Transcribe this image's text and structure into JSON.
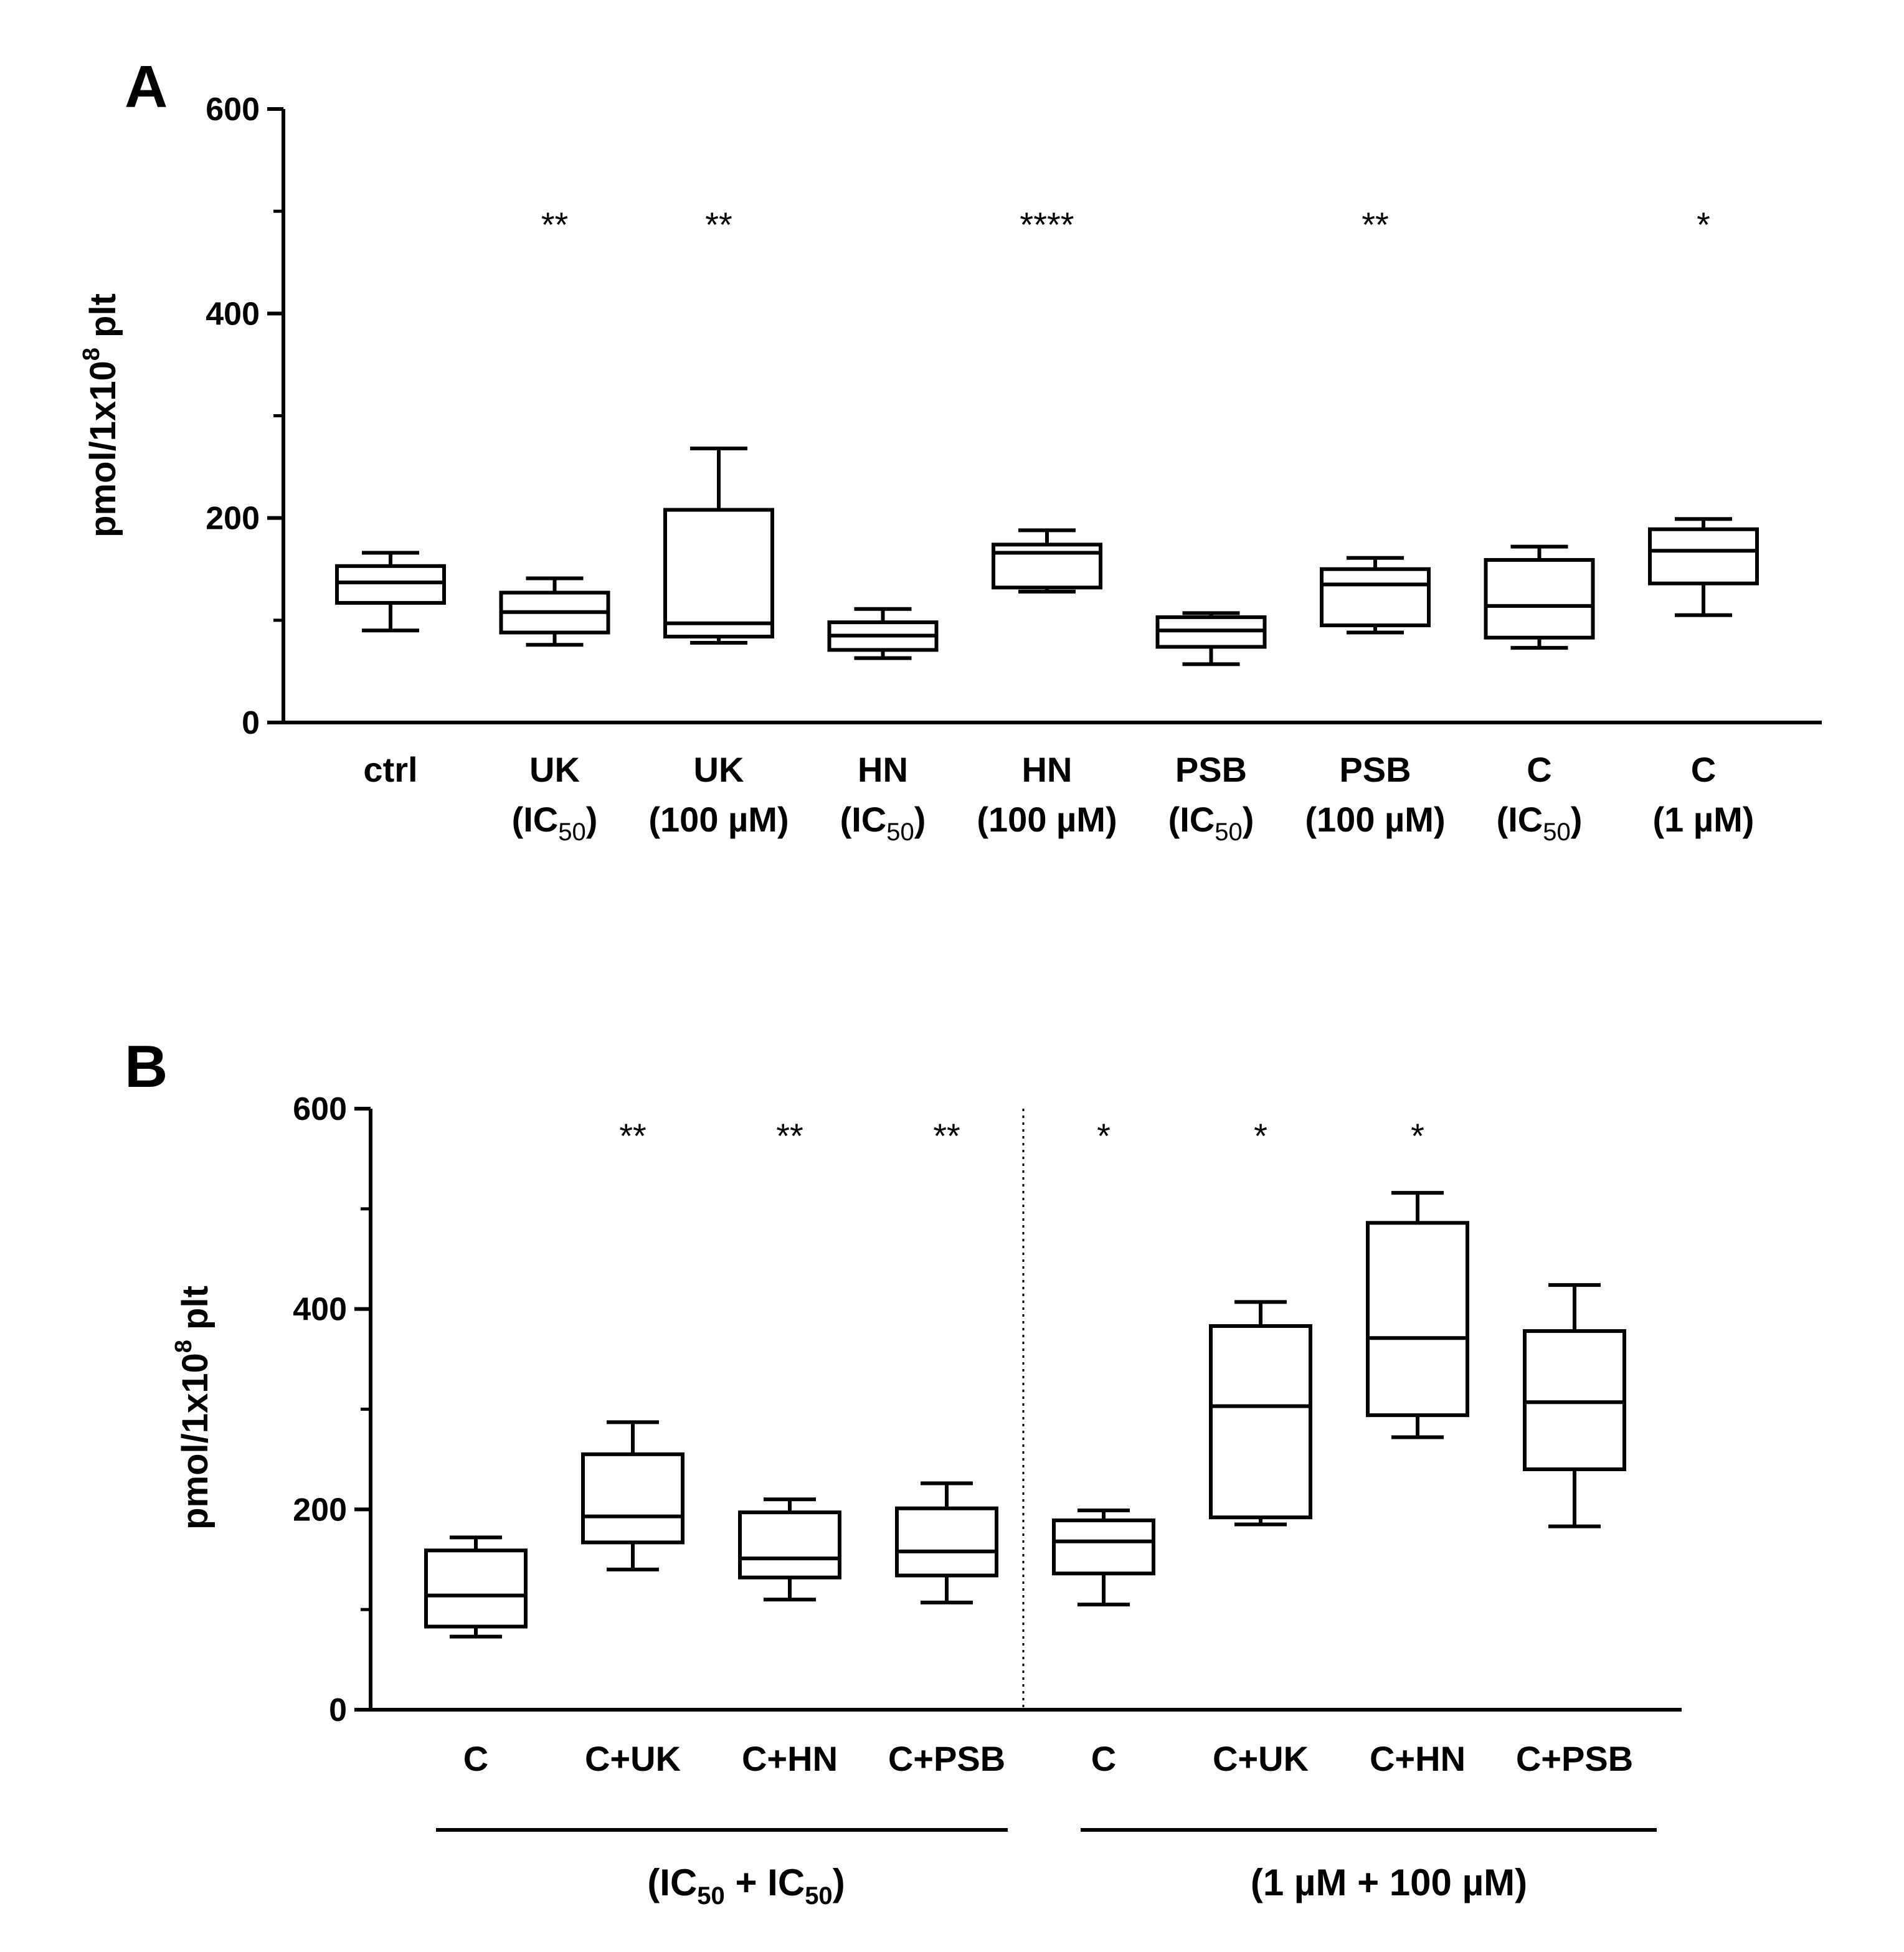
{
  "chart_data": [
    {
      "panel": "A",
      "type": "box",
      "ylabel": {
        "main": "pmol/1x10",
        "sup": "8",
        "tail": " plt"
      },
      "ylim": [
        0,
        600
      ],
      "yticks": [
        "0",
        "200",
        "400",
        "600"
      ],
      "categories": [
        {
          "line1": "ctrl",
          "line2": null
        },
        {
          "line1": "UK",
          "line2": {
            "pre": "(IC",
            "sub": "50",
            "post": ")"
          }
        },
        {
          "line1": "UK",
          "line2": {
            "pre": "(100 µM)",
            "sub": "",
            "post": ""
          }
        },
        {
          "line1": "HN",
          "line2": {
            "pre": "(IC",
            "sub": "50",
            "post": ")"
          }
        },
        {
          "line1": "HN",
          "line2": {
            "pre": "(100 µM)",
            "sub": "",
            "post": ""
          }
        },
        {
          "line1": "PSB",
          "line2": {
            "pre": "(IC",
            "sub": "50",
            "post": ")"
          }
        },
        {
          "line1": "PSB",
          "line2": {
            "pre": "(100 µM)",
            "sub": "",
            "post": ""
          }
        },
        {
          "line1": "C",
          "line2": {
            "pre": "(IC",
            "sub": "50",
            "post": ")"
          }
        },
        {
          "line1": "C",
          "line2": {
            "pre": "(1 µM)",
            "sub": "",
            "post": ""
          }
        }
      ],
      "boxes": [
        {
          "min": 90,
          "q1": 117,
          "median": 137,
          "q3": 153,
          "max": 166
        },
        {
          "min": 76,
          "q1": 88,
          "median": 108,
          "q3": 127,
          "max": 141
        },
        {
          "min": 78,
          "q1": 84,
          "median": 97,
          "q3": 208,
          "max": 268
        },
        {
          "min": 63,
          "q1": 71,
          "median": 85,
          "q3": 98,
          "max": 111
        },
        {
          "min": 128,
          "q1": 132,
          "median": 166,
          "q3": 174,
          "max": 188
        },
        {
          "min": 57,
          "q1": 74,
          "median": 90,
          "q3": 103,
          "max": 107
        },
        {
          "min": 88,
          "q1": 95,
          "median": 135,
          "q3": 150,
          "max": 161
        },
        {
          "min": 73,
          "q1": 83,
          "median": 114,
          "q3": 159,
          "max": 172
        },
        {
          "min": 105,
          "q1": 136,
          "median": 168,
          "q3": 189,
          "max": 199
        }
      ],
      "significance": [
        "",
        "**",
        "**",
        "",
        "****",
        "",
        "**",
        "",
        "*"
      ]
    },
    {
      "panel": "B",
      "type": "box",
      "ylabel": {
        "main": "pmol/1x10",
        "sup": "8",
        "tail": " plt"
      },
      "ylim": [
        0,
        600
      ],
      "yticks": [
        "0",
        "200",
        "400",
        "600"
      ],
      "categories": [
        "C",
        "C+UK",
        "C+HN",
        "C+PSB",
        "C",
        "C+UK",
        "C+HN",
        "C+PSB"
      ],
      "boxes": [
        {
          "min": 73,
          "q1": 83,
          "median": 114,
          "q3": 159,
          "max": 172
        },
        {
          "min": 140,
          "q1": 167,
          "median": 193,
          "q3": 255,
          "max": 287
        },
        {
          "min": 110,
          "q1": 132,
          "median": 151,
          "q3": 197,
          "max": 210
        },
        {
          "min": 107,
          "q1": 134,
          "median": 158,
          "q3": 201,
          "max": 226
        },
        {
          "min": 105,
          "q1": 136,
          "median": 168,
          "q3": 189,
          "max": 199
        },
        {
          "min": 185,
          "q1": 192,
          "median": 303,
          "q3": 383,
          "max": 407
        },
        {
          "min": 272,
          "q1": 294,
          "median": 371,
          "q3": 486,
          "max": 516
        },
        {
          "min": 183,
          "q1": 240,
          "median": 307,
          "q3": 378,
          "max": 424
        }
      ],
      "significance": [
        "",
        "**",
        "**",
        "**",
        "*",
        "*",
        "*",
        ""
      ],
      "groups": [
        {
          "pre": "(IC",
          "sub1": "50",
          "mid": " + IC",
          "sub2": "50",
          "post": ")"
        },
        {
          "pre": "(1 µM + 100 µM)",
          "sub1": "",
          "mid": "",
          "sub2": "",
          "post": ""
        }
      ]
    }
  ],
  "panel_labels": [
    "A",
    "B"
  ]
}
